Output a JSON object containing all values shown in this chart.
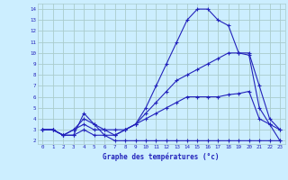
{
  "xlabel": "Graphe des températures (°c)",
  "background_color": "#cceeff",
  "grid_color": "#aacccc",
  "line_color": "#2222bb",
  "x_ticks": [
    0,
    1,
    2,
    3,
    4,
    5,
    6,
    7,
    8,
    9,
    10,
    11,
    12,
    13,
    14,
    15,
    16,
    17,
    18,
    19,
    20,
    21,
    22,
    23
  ],
  "y_ticks": [
    2,
    3,
    4,
    5,
    6,
    7,
    8,
    9,
    10,
    11,
    12,
    13,
    14
  ],
  "xlim": [
    -0.5,
    23.5
  ],
  "ylim": [
    1.7,
    14.5
  ],
  "series": [
    {
      "x": [
        0,
        1,
        2,
        3,
        4,
        5,
        6,
        7,
        8,
        9,
        10,
        11,
        12,
        13,
        14,
        15,
        16,
        17,
        18,
        19,
        20,
        21,
        22,
        23
      ],
      "y": [
        3,
        3,
        2.5,
        2.5,
        4.5,
        3.5,
        2.5,
        2,
        2,
        2,
        2,
        2,
        2,
        2,
        2,
        2,
        2,
        2,
        2,
        2,
        2,
        2,
        2,
        2
      ]
    },
    {
      "x": [
        0,
        1,
        2,
        3,
        4,
        5,
        6,
        7,
        8,
        9,
        10,
        11,
        12,
        13,
        14,
        15,
        16,
        17,
        18,
        19,
        20,
        21,
        22,
        23
      ],
      "y": [
        3,
        3,
        2.5,
        3,
        3.5,
        3,
        3,
        3,
        3,
        3.5,
        4,
        4.5,
        5,
        5.5,
        6,
        6,
        6,
        6,
        6.2,
        6.3,
        6.5,
        4,
        3.5,
        3
      ]
    },
    {
      "x": [
        0,
        1,
        2,
        3,
        4,
        5,
        6,
        7,
        8,
        9,
        10,
        11,
        12,
        13,
        14,
        15,
        16,
        17,
        18,
        19,
        20,
        21,
        22,
        23
      ],
      "y": [
        3,
        3,
        2.5,
        2.5,
        3,
        2.5,
        2.5,
        2.5,
        3,
        3.5,
        4.5,
        5.5,
        6.5,
        7.5,
        8,
        8.5,
        9,
        9.5,
        10,
        10,
        10,
        7,
        4,
        3
      ]
    },
    {
      "x": [
        0,
        1,
        2,
        3,
        4,
        5,
        6,
        7,
        8,
        9,
        10,
        11,
        12,
        13,
        14,
        15,
        16,
        17,
        18,
        19,
        20,
        21,
        22,
        23
      ],
      "y": [
        3,
        3,
        2.5,
        3,
        4,
        3.5,
        3,
        2.5,
        3,
        3.5,
        5,
        7,
        9,
        11,
        13,
        14,
        14,
        13,
        12.5,
        10,
        9.8,
        5,
        3.5,
        2
      ]
    }
  ]
}
